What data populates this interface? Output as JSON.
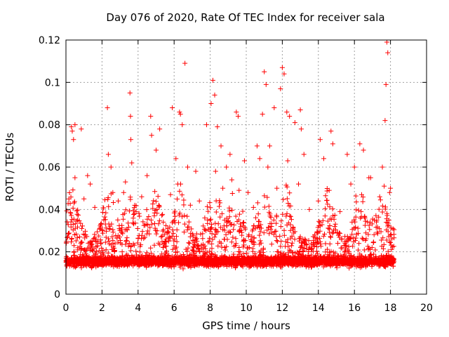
{
  "chart_data": {
    "type": "scatter",
    "title": "Day 076 of 2020, Rate Of TEC Index for receiver sala",
    "xlabel": "GPS time / hours",
    "ylabel": "ROTI / TECUs",
    "xlim": [
      0,
      20
    ],
    "ylim": [
      0,
      0.12
    ],
    "xticks": [
      "0",
      "2",
      "4",
      "6",
      "8",
      "10",
      "12",
      "14",
      "16",
      "18",
      "20"
    ],
    "yticks": [
      "0",
      "0.02",
      "0.04",
      "0.06",
      "0.08",
      "0.1",
      "0.12"
    ],
    "grid": true,
    "marker": "+",
    "color": "#ff0000",
    "series": [
      {
        "name": "ROTI",
        "x": [
          0.3,
          0.35,
          0.42,
          0.5,
          0.85,
          1.2,
          1.35,
          2.3,
          2.35,
          2.5,
          3.2,
          3.55,
          3.58,
          3.6,
          3.65,
          4.5,
          4.7,
          4.75,
          5.0,
          5.2,
          5.9,
          6.1,
          6.3,
          6.35,
          6.45,
          6.6,
          6.75,
          7.2,
          7.8,
          8.05,
          8.15,
          8.25,
          8.4,
          8.6,
          8.9,
          9.1,
          9.45,
          9.55,
          9.9,
          10.6,
          10.75,
          10.9,
          11.0,
          11.1,
          11.3,
          11.55,
          11.9,
          12.0,
          12.1,
          12.25,
          12.4,
          12.7,
          13.0,
          13.05,
          13.2,
          14.1,
          14.3,
          14.7,
          14.8,
          15.6,
          16.0,
          16.3,
          16.5,
          16.9,
          17.55,
          17.65,
          17.7,
          17.75,
          17.8,
          17.85,
          18.0,
          0.1,
          0.5,
          1.0,
          1.6,
          2.1,
          2.6,
          2.9,
          3.3,
          3.8,
          4.2,
          4.9,
          5.4,
          5.8,
          6.2,
          6.9,
          7.4,
          7.7,
          8.3,
          8.7,
          9.2,
          9.6,
          10.1,
          10.4,
          11.2,
          11.7,
          12.3,
          12.9,
          13.5,
          14.0,
          14.6,
          15.2,
          15.8,
          16.4,
          16.8,
          17.4,
          17.95
        ],
        "y": [
          0.079,
          0.077,
          0.073,
          0.08,
          0.078,
          0.056,
          0.052,
          0.088,
          0.066,
          0.06,
          0.048,
          0.095,
          0.084,
          0.073,
          0.062,
          0.056,
          0.084,
          0.075,
          0.068,
          0.078,
          0.088,
          0.064,
          0.086,
          0.085,
          0.08,
          0.109,
          0.06,
          0.058,
          0.08,
          0.09,
          0.101,
          0.094,
          0.079,
          0.07,
          0.06,
          0.066,
          0.086,
          0.084,
          0.063,
          0.07,
          0.064,
          0.085,
          0.105,
          0.099,
          0.07,
          0.088,
          0.097,
          0.107,
          0.104,
          0.086,
          0.084,
          0.081,
          0.087,
          0.078,
          0.066,
          0.073,
          0.064,
          0.077,
          0.071,
          0.066,
          0.06,
          0.071,
          0.068,
          0.055,
          0.06,
          0.051,
          0.082,
          0.099,
          0.119,
          0.114,
          0.05,
          0.027,
          0.055,
          0.045,
          0.041,
          0.035,
          0.048,
          0.044,
          0.053,
          0.038,
          0.046,
          0.037,
          0.034,
          0.047,
          0.052,
          0.042,
          0.044,
          0.036,
          0.058,
          0.05,
          0.054,
          0.049,
          0.048,
          0.041,
          0.06,
          0.05,
          0.063,
          0.052,
          0.04,
          0.044,
          0.049,
          0.039,
          0.052,
          0.047,
          0.055,
          0.046,
          0.048
        ]
      }
    ]
  }
}
